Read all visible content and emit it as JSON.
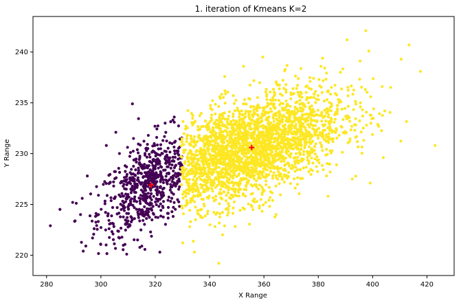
{
  "chart_data": {
    "type": "scatter",
    "title": "1. iteration of Kmeans K=2",
    "xlabel": "X Range",
    "ylabel": "Y Range",
    "xlim": [
      275,
      430
    ],
    "ylim": [
      218,
      243.5
    ],
    "xticks": [
      280,
      300,
      320,
      340,
      360,
      380,
      400,
      420
    ],
    "yticks": [
      220,
      225,
      230,
      235,
      240
    ],
    "grid": false,
    "legend": "none",
    "clusters": [
      {
        "color": "#440154",
        "centroid": {
          "x": 318.5,
          "y": 226.9
        },
        "x_range": [
          281,
          330
        ],
        "distribution": {
          "mean_x": 318,
          "std_x": 9.5,
          "mean_y": 227,
          "std_y": 2.6,
          "count": 650
        }
      },
      {
        "color": "#fde725",
        "centroid": {
          "x": 355.5,
          "y": 230.6
        },
        "x_range": [
          329.5,
          424
        ],
        "distribution": {
          "mean_x": 353,
          "std_x": 18,
          "mean_y": 230.3,
          "std_y": 2.9,
          "count": 2600
        }
      }
    ],
    "points": [
      {
        "x": 281.4,
        "y": 222.9,
        "cluster": 0
      },
      {
        "x": 289.6,
        "y": 225.2,
        "cluster": 0
      },
      {
        "x": 292.5,
        "y": 224.0,
        "cluster": 0
      },
      {
        "x": 293.5,
        "y": 220.4,
        "cluster": 0
      },
      {
        "x": 295.0,
        "y": 227.8,
        "cluster": 0
      },
      {
        "x": 299.1,
        "y": 225.9,
        "cluster": 0
      },
      {
        "x": 309.5,
        "y": 220.1,
        "cluster": 0
      },
      {
        "x": 311.6,
        "y": 234.9,
        "cluster": 0
      },
      {
        "x": 319.9,
        "y": 232.7,
        "cluster": 0
      },
      {
        "x": 321.7,
        "y": 220.3,
        "cluster": 0
      },
      {
        "x": 302.0,
        "y": 230.8,
        "cluster": 0
      },
      {
        "x": 305.5,
        "y": 232.1,
        "cluster": 0
      },
      {
        "x": 327.0,
        "y": 233.6,
        "cluster": 0
      },
      {
        "x": 313.5,
        "y": 221.5,
        "cluster": 0
      },
      {
        "x": 334.4,
        "y": 220.3,
        "cluster": 1
      },
      {
        "x": 343.4,
        "y": 219.2,
        "cluster": 1
      },
      {
        "x": 390.6,
        "y": 241.2,
        "cluster": 1
      },
      {
        "x": 397.5,
        "y": 242.1,
        "cluster": 1
      },
      {
        "x": 398.6,
        "y": 240.1,
        "cluster": 1
      },
      {
        "x": 413.4,
        "y": 240.7,
        "cluster": 1
      },
      {
        "x": 417.6,
        "y": 238.1,
        "cluster": 1
      },
      {
        "x": 423.0,
        "y": 230.8,
        "cluster": 1
      },
      {
        "x": 410.5,
        "y": 239.3,
        "cluster": 1
      },
      {
        "x": 383.6,
        "y": 225.8,
        "cluster": 1
      },
      {
        "x": 352.5,
        "y": 238.6,
        "cluster": 1
      },
      {
        "x": 381.0,
        "y": 238.6,
        "cluster": 1
      },
      {
        "x": 392.5,
        "y": 227.5,
        "cluster": 1
      },
      {
        "x": 403.5,
        "y": 236.6,
        "cluster": 1
      }
    ]
  }
}
